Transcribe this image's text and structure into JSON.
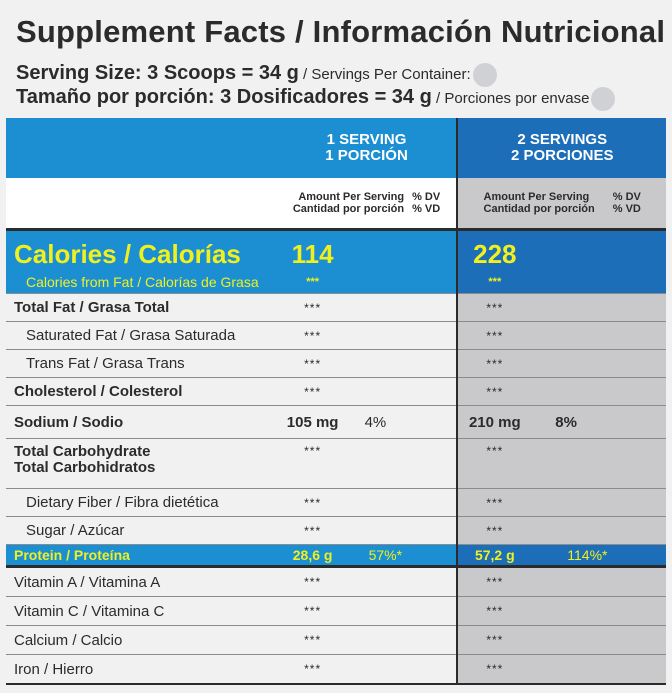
{
  "title": "Supplement Facts / Información Nutricional",
  "serving_size": {
    "en_bold": "Serving Size: 3 Scoops = 34 g",
    "en_small": " / Servings Per Container:",
    "es_bold": "Tamaño por porción: 3 Dosificadores = 34 g",
    "es_small": " / Porciones por envase"
  },
  "columns": {
    "one_line1": "1 SERVING",
    "one_line2": "1 PORCIÓN",
    "two_line1": "2 SERVINGS",
    "two_line2": "2 PORCIONES",
    "amount_en": "Amount Per Serving",
    "amount_es": "Cantidad por porción",
    "dv_en": "% DV",
    "dv_es": "% VD"
  },
  "calories": {
    "label": "Calories / Calorías",
    "one": "114",
    "two": "228",
    "fat_label": "Calories from Fat / Calorías de Grasa",
    "fat_one": "***",
    "fat_two": "***"
  },
  "nutrients": [
    {
      "label": "Total Fat / Grasa Total",
      "one": "***",
      "one_dv": "",
      "two": "***",
      "two_dv": ""
    },
    {
      "label": "Saturated Fat / Grasa Saturada",
      "one": "***",
      "one_dv": "",
      "two": "***",
      "two_dv": ""
    },
    {
      "label": "Trans Fat / Grasa Trans",
      "one": "***",
      "one_dv": "",
      "two": "***",
      "two_dv": ""
    },
    {
      "label": "Cholesterol / Colesterol",
      "one": "***",
      "one_dv": "",
      "two": "***",
      "two_dv": ""
    },
    {
      "label": "Sodium / Sodio",
      "one": "105 mg",
      "one_dv": "4%",
      "two": "210 mg",
      "two_dv": "8%"
    },
    {
      "label_line1": "Total Carbohydrate",
      "label_line2": "Total Carbohidratos",
      "one": "***",
      "one_dv": "",
      "two": "***",
      "two_dv": ""
    },
    {
      "label": "Dietary Fiber / Fibra dietética",
      "one": "***",
      "one_dv": "",
      "two": "***",
      "two_dv": ""
    },
    {
      "label": "Sugar / Azúcar",
      "one": "***",
      "one_dv": "",
      "two": "***",
      "two_dv": ""
    },
    {
      "label": "Protein / Proteína",
      "one": "28,6 g",
      "one_dv": "57%*",
      "two": "57,2 g",
      "two_dv": "114%*"
    }
  ],
  "vitamins": [
    {
      "label": "Vitamin A / Vitamina A",
      "one": "***",
      "two": "***"
    },
    {
      "label": "Vitamin C / Vitamina C",
      "one": "***",
      "two": "***"
    },
    {
      "label": "Calcium / Calcio",
      "one": "***",
      "two": "***"
    },
    {
      "label": "Iron / Hierro",
      "one": "***",
      "two": "***"
    }
  ],
  "colors": {
    "header_blue": "#1b8fd2",
    "header_blue_dark": "#1d6eb9",
    "highlight_yellow": "#f1f01f",
    "shaded_gray": "#c9c9cb",
    "text_dark": "#2b2b2b"
  }
}
